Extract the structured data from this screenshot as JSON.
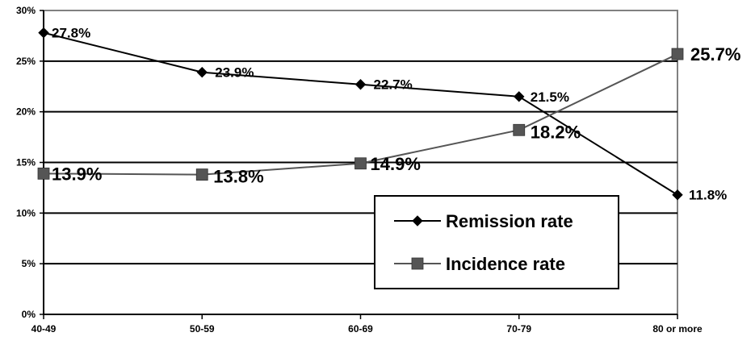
{
  "chart_data": {
    "type": "line",
    "categories": [
      "40-49",
      "50-59",
      "60-69",
      "70-79",
      "80 or more"
    ],
    "ylim": [
      0,
      30
    ],
    "yticks": [
      0,
      5,
      10,
      15,
      20,
      25,
      30
    ],
    "ytick_labels": [
      "0%",
      "5%",
      "10%",
      "15%",
      "20%",
      "25%",
      "30%"
    ],
    "grid": true,
    "legend_position": "bottom-right",
    "series": [
      {
        "name": "Remission rate",
        "values": [
          27.8,
          23.9,
          22.7,
          21.5,
          11.8
        ],
        "labels": [
          "27.8%",
          "23.9%",
          "22.7%",
          "21.5%",
          "11.8%"
        ],
        "color": "#000000",
        "marker": "diamond"
      },
      {
        "name": "Incidence rate",
        "values": [
          13.9,
          13.8,
          14.9,
          18.2,
          25.7
        ],
        "labels": [
          "13.9%",
          "13.8%",
          "14.9%",
          "18.2%",
          "25.7%"
        ],
        "color": "#555555",
        "marker": "square"
      }
    ],
    "title": "",
    "xlabel": "",
    "ylabel": ""
  }
}
